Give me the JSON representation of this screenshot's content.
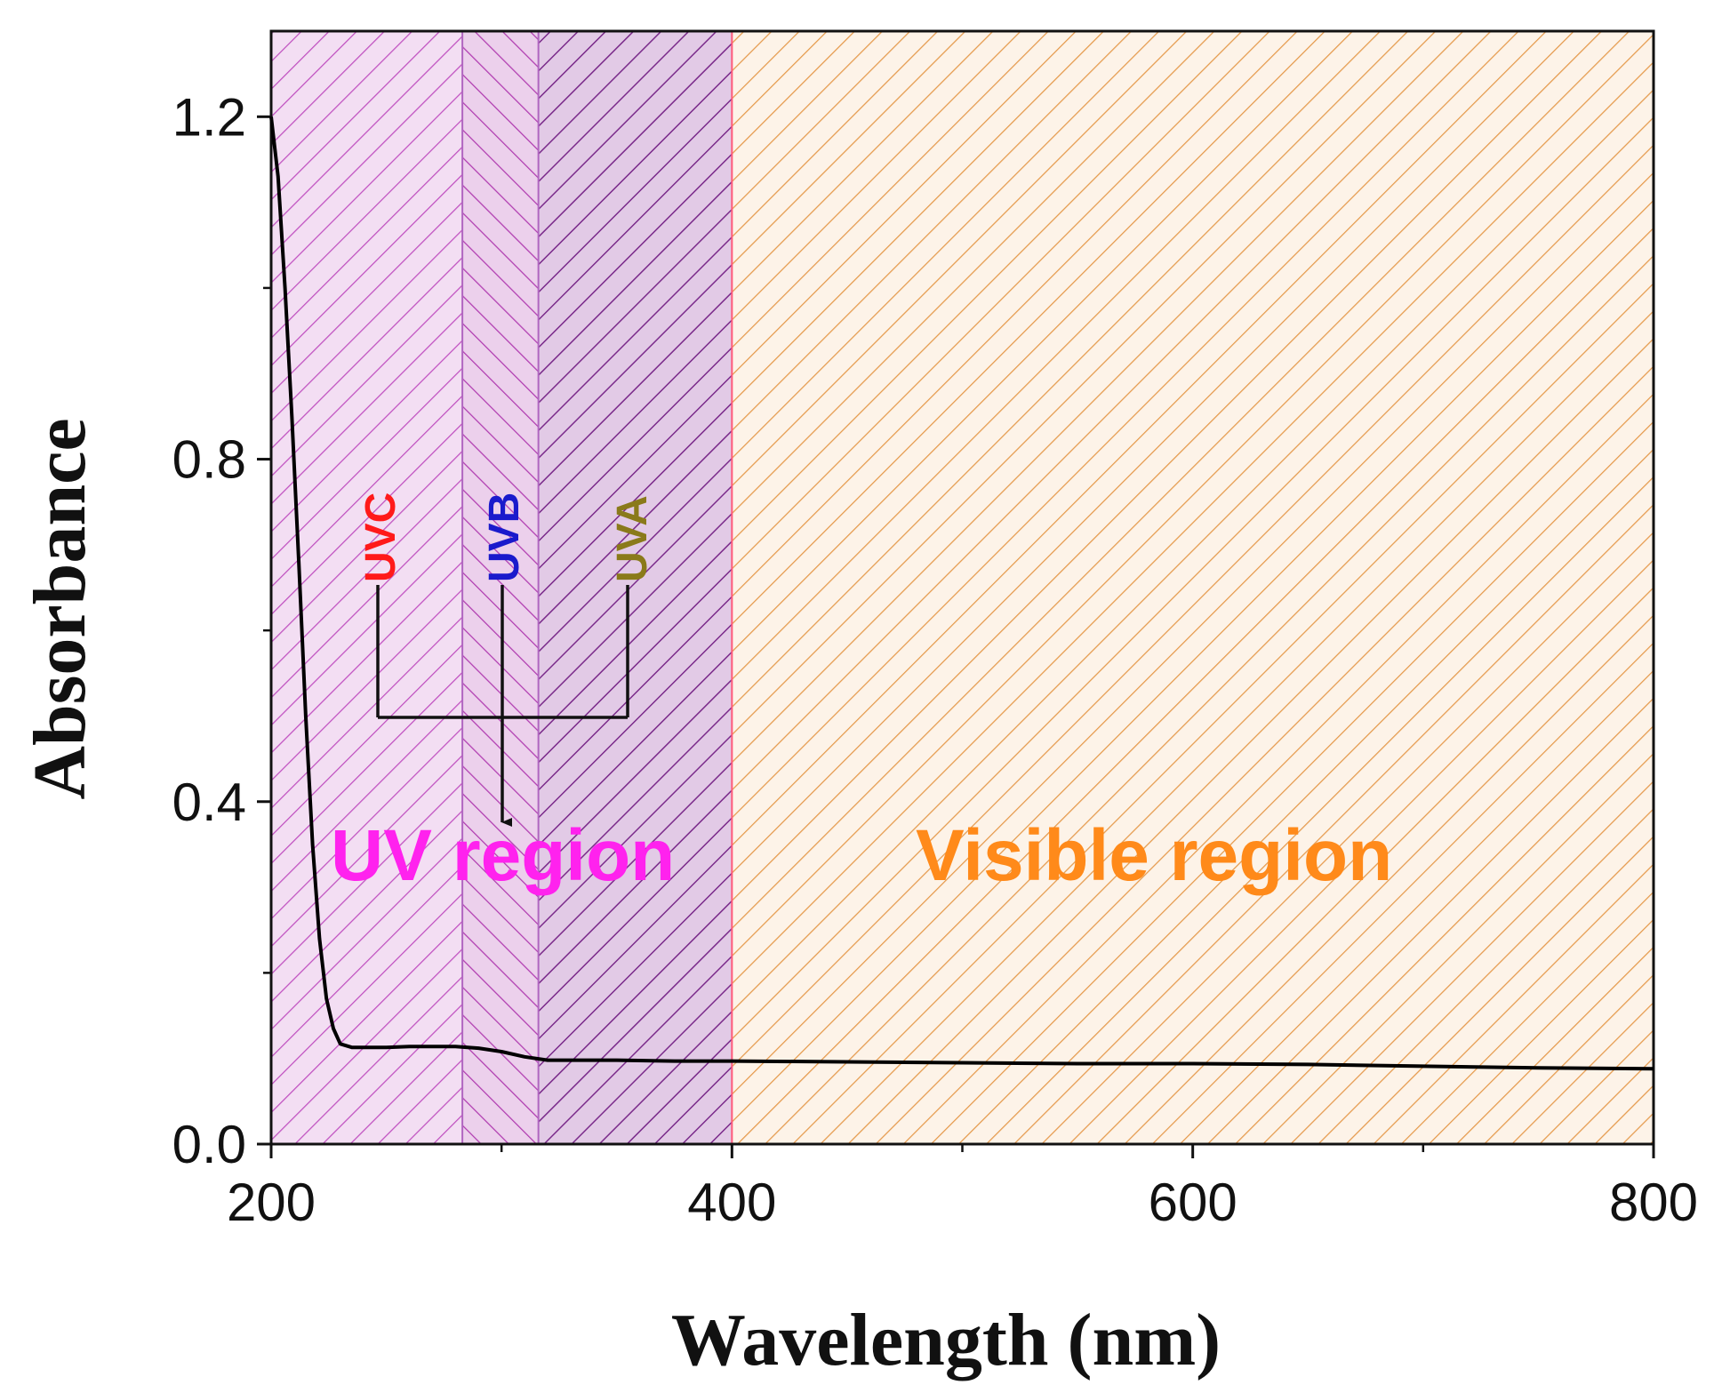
{
  "chart_data": {
    "type": "line",
    "xlabel": "Wavelength (nm)",
    "ylabel": "Absorbance",
    "xlim": [
      200,
      800
    ],
    "ylim": [
      0.0,
      1.3
    ],
    "xticks": [
      200,
      400,
      600,
      800
    ],
    "xtick_labels": [
      "200",
      "400",
      "600",
      "800"
    ],
    "yticks": [
      0.0,
      0.4,
      0.8,
      1.2
    ],
    "ytick_labels": [
      "0.0",
      "0.4",
      "0.8",
      "1.2"
    ],
    "grid": false,
    "series": [
      {
        "name": "Absorbance",
        "color": "#000000",
        "x": [
          200,
          203,
          206,
          209,
          212,
          215,
          218,
          221,
          224,
          227,
          230,
          235,
          240,
          250,
          260,
          270,
          280,
          290,
          300,
          310,
          320,
          330,
          340,
          350,
          375,
          400,
          450,
          500,
          550,
          600,
          650,
          700,
          750,
          800
        ],
        "y": [
          1.2,
          1.13,
          1.0,
          0.85,
          0.68,
          0.5,
          0.35,
          0.24,
          0.17,
          0.135,
          0.117,
          0.113,
          0.113,
          0.113,
          0.114,
          0.114,
          0.114,
          0.112,
          0.108,
          0.102,
          0.098,
          0.098,
          0.098,
          0.098,
          0.097,
          0.097,
          0.096,
          0.095,
          0.094,
          0.094,
          0.093,
          0.091,
          0.089,
          0.088
        ]
      }
    ],
    "regions": [
      {
        "name": "UVC",
        "x_range": [
          200,
          283
        ],
        "color": "#c050c0",
        "fill": "#f3def3"
      },
      {
        "name": "UVB",
        "x_range": [
          283,
          316
        ],
        "color": "#b03cb0",
        "fill": "#ecd0ec"
      },
      {
        "name": "UVA",
        "x_range": [
          316,
          400
        ],
        "color": "#7a2a8a",
        "fill": "#e2cae6"
      },
      {
        "name": "Visible",
        "x_range": [
          400,
          800
        ],
        "color": "#e59a4c",
        "fill": "#fbeee0"
      }
    ],
    "band_labels": [
      {
        "text": "UVC",
        "color": "#ff1a1a"
      },
      {
        "text": "UVB",
        "color": "#1a1acc"
      },
      {
        "text": "UVA",
        "color": "#8a7a1a"
      }
    ],
    "annotations": [
      {
        "text": "UV region",
        "color": "#ff22ee"
      },
      {
        "text": "Visible region",
        "color": "#ff8a1a"
      }
    ]
  }
}
